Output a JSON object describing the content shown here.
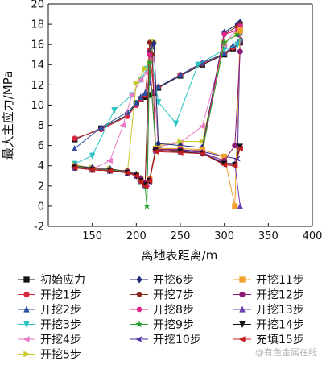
{
  "watermark": "@有色金属在线",
  "chart_data": {
    "type": "line",
    "xlabel": "离地表距离/m",
    "ylabel": "最大主应力/MPa",
    "xlim": [
      100,
      400
    ],
    "ylim": [
      -2,
      20
    ],
    "xticks": [
      150,
      200,
      250,
      300,
      350,
      400
    ],
    "yticks": [
      -2,
      0,
      2,
      4,
      6,
      8,
      10,
      12,
      14,
      16,
      18,
      20
    ],
    "grid": false,
    "legend_position": "bottom",
    "series": [
      {
        "name": "初始应力",
        "color": "#111111",
        "marker": "square",
        "x": [
          130,
          160,
          190,
          200,
          205,
          210,
          215,
          220,
          225,
          250,
          275,
          300,
          310,
          318
        ],
        "y": [
          6.6,
          7.7,
          9.0,
          10.2,
          10.6,
          10.8,
          11.0,
          11.2,
          11.7,
          12.9,
          14.0,
          15.0,
          15.6,
          16.2
        ]
      },
      {
        "name": "开挖1步",
        "color": "#d7263d",
        "marker": "circle",
        "x": [
          130,
          160,
          190,
          200,
          205,
          210,
          215,
          220,
          225,
          250,
          275,
          300,
          310,
          318
        ],
        "y": [
          6.7,
          7.6,
          8.9,
          10.0,
          10.6,
          11.0,
          15.4,
          11.3,
          11.8,
          13.0,
          14.1,
          15.1,
          15.7,
          16.3
        ]
      },
      {
        "name": "开挖2步",
        "color": "#2b4ea2",
        "marker": "triangle-up",
        "x": [
          130,
          160,
          190,
          200,
          205,
          210,
          215,
          218,
          220,
          225,
          250,
          275,
          300,
          310,
          318
        ],
        "y": [
          5.7,
          7.8,
          9.3,
          10.2,
          10.8,
          11.2,
          12.2,
          15.8,
          11.4,
          11.8,
          13.0,
          14.2,
          15.1,
          15.9,
          16.5
        ]
      },
      {
        "name": "开挖3步",
        "color": "#27c2c2",
        "marker": "triangle-down",
        "x": [
          130,
          150,
          175,
          195,
          205,
          212,
          218,
          225,
          245,
          270,
          300,
          315,
          318
        ],
        "y": [
          4.2,
          5.0,
          9.5,
          11.0,
          12.5,
          13.6,
          14.3,
          10.3,
          8.2,
          14.0,
          15.5,
          16.0,
          16.3
        ]
      },
      {
        "name": "开挖4步",
        "color": "#e879c6",
        "marker": "triangle-left",
        "x": [
          130,
          150,
          170,
          185,
          195,
          205,
          212,
          218,
          225,
          250,
          275,
          300,
          315,
          318
        ],
        "y": [
          3.9,
          3.7,
          4.5,
          8.0,
          11.0,
          12.5,
          13.2,
          14.5,
          5.9,
          6.3,
          7.9,
          16.0,
          17.6,
          17.8
        ]
      },
      {
        "name": "开挖5步",
        "color": "#c8c82c",
        "marker": "triangle-right",
        "x": [
          130,
          150,
          170,
          190,
          200,
          210,
          215,
          220,
          225,
          250,
          275,
          300,
          315,
          318
        ],
        "y": [
          4.1,
          3.8,
          3.7,
          3.4,
          12.2,
          13.6,
          14.2,
          16.3,
          6.0,
          6.4,
          6.4,
          16.2,
          17.0,
          17.4
        ]
      },
      {
        "name": "开挖6步",
        "color": "#1f2a7a",
        "marker": "diamond",
        "x": [
          130,
          150,
          170,
          190,
          200,
          205,
          210,
          215,
          220,
          225,
          250,
          275,
          300,
          315,
          318
        ],
        "y": [
          4.0,
          3.8,
          3.7,
          3.4,
          3.0,
          2.6,
          2.1,
          15.2,
          16.1,
          6.2,
          6.0,
          5.8,
          17.2,
          18.0,
          18.2
        ]
      },
      {
        "name": "开挖7步",
        "color": "#8a2a1e",
        "marker": "pentagon",
        "x": [
          130,
          150,
          170,
          190,
          200,
          205,
          210,
          215,
          218,
          222,
          250,
          275,
          300,
          315,
          318
        ],
        "y": [
          4.0,
          3.7,
          3.6,
          3.5,
          3.2,
          2.8,
          2.3,
          16.2,
          15.0,
          5.6,
          5.5,
          5.5,
          17.0,
          17.8,
          18.0
        ]
      },
      {
        "name": "开挖8步",
        "color": "#e0268c",
        "marker": "hexagon",
        "x": [
          130,
          150,
          170,
          190,
          200,
          205,
          210,
          212,
          215,
          222,
          250,
          275,
          300,
          315,
          318
        ],
        "y": [
          4.0,
          3.6,
          3.6,
          3.4,
          3.1,
          2.6,
          2.0,
          2.0,
          15.0,
          5.7,
          5.6,
          5.4,
          17.0,
          17.4,
          17.8
        ]
      },
      {
        "name": "开挖9步",
        "color": "#27a02c",
        "marker": "star",
        "x": [
          130,
          150,
          170,
          190,
          200,
          205,
          210,
          212,
          215,
          222,
          250,
          275,
          300,
          315,
          318
        ],
        "y": [
          4.0,
          3.6,
          3.6,
          3.4,
          3.2,
          2.4,
          1.9,
          0.0,
          14.2,
          5.8,
          5.5,
          5.4,
          16.2,
          17.0,
          17.2
        ]
      },
      {
        "name": "开挖10步",
        "color": "#4b2f9c",
        "marker": "arrow-left",
        "x": [
          130,
          150,
          170,
          190,
          200,
          205,
          210,
          215,
          222,
          250,
          275,
          300,
          315,
          318
        ],
        "y": [
          3.9,
          3.6,
          3.5,
          3.3,
          3.0,
          2.5,
          2.0,
          2.4,
          5.6,
          5.6,
          5.4,
          4.9,
          4.7,
          16.8
        ]
      },
      {
        "name": "开挖11步",
        "color": "#f0a02c",
        "marker": "square",
        "x": [
          130,
          150,
          170,
          190,
          200,
          205,
          210,
          215,
          222,
          250,
          275,
          300,
          312,
          318
        ],
        "y": [
          3.9,
          3.6,
          3.5,
          3.3,
          3.1,
          2.6,
          2.2,
          2.7,
          5.7,
          5.7,
          5.6,
          4.9,
          0.0,
          17.4
        ]
      },
      {
        "name": "开挖12步",
        "color": "#8a1a78",
        "marker": "circle",
        "x": [
          130,
          150,
          170,
          190,
          200,
          205,
          210,
          215,
          222,
          250,
          275,
          300,
          312,
          318
        ],
        "y": [
          3.9,
          3.6,
          3.5,
          3.4,
          3.1,
          2.7,
          2.3,
          2.6,
          5.6,
          5.6,
          5.3,
          4.5,
          6.0,
          15.3
        ]
      },
      {
        "name": "开挖13步",
        "color": "#6a3fb0",
        "marker": "triangle-up",
        "x": [
          130,
          150,
          170,
          190,
          200,
          205,
          210,
          215,
          222,
          250,
          275,
          300,
          312,
          318
        ],
        "y": [
          3.8,
          3.6,
          3.5,
          3.3,
          3.0,
          2.5,
          2.1,
          2.6,
          5.5,
          5.4,
          5.3,
          4.3,
          4.2,
          0.0
        ]
      },
      {
        "name": "开挖14步",
        "color": "#111111",
        "marker": "triangle-down",
        "x": [
          130,
          150,
          170,
          190,
          200,
          205,
          210,
          215,
          222,
          250,
          275,
          300,
          312,
          318
        ],
        "y": [
          3.8,
          3.6,
          3.5,
          3.3,
          3.0,
          2.5,
          2.1,
          2.5,
          5.5,
          5.4,
          5.2,
          4.2,
          4.1,
          5.9
        ]
      },
      {
        "name": "充填15步",
        "color": "#c41e1e",
        "marker": "triangle-left",
        "x": [
          130,
          150,
          170,
          190,
          200,
          205,
          210,
          215,
          222,
          250,
          275,
          300,
          312,
          318
        ],
        "y": [
          3.8,
          3.6,
          3.5,
          3.3,
          3.0,
          2.4,
          2.0,
          2.5,
          5.4,
          5.3,
          5.2,
          4.1,
          4.0,
          5.7
        ]
      }
    ]
  }
}
